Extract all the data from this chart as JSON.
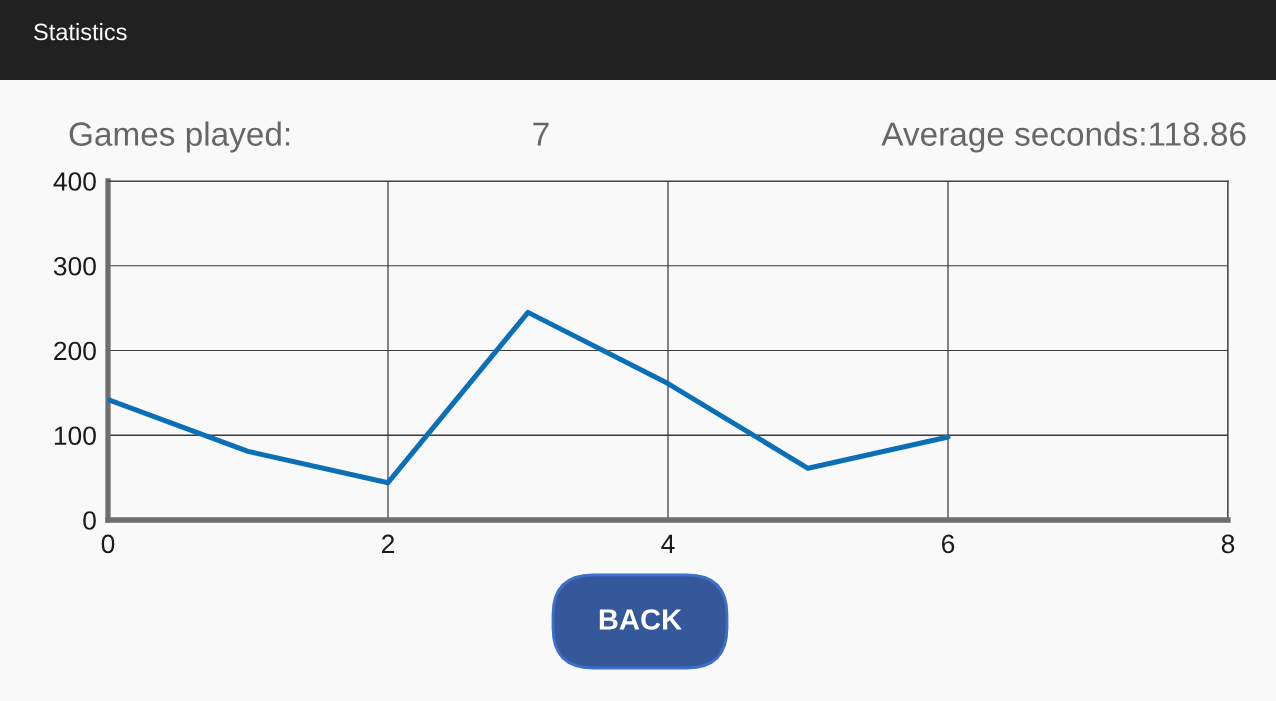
{
  "chart_data": {
    "type": "line",
    "title": "Statistics",
    "annotations": [
      "Games played:",
      "7",
      "Average seconds:118.86",
      "BACK"
    ],
    "x": [
      0,
      1,
      2,
      3,
      4,
      5,
      6
    ],
    "series": [
      {
        "color": "#0b6fb8",
        "values": [
          142,
          81,
          44,
          245,
          161,
          61,
          98
        ]
      }
    ],
    "xlim": [
      0,
      8
    ],
    "xticks": [
      0,
      2,
      4,
      6,
      8
    ],
    "ylim": [
      0,
      400
    ],
    "yticks": [
      0,
      100,
      200,
      300,
      400
    ],
    "grid": true,
    "line_style": "solid"
  }
}
